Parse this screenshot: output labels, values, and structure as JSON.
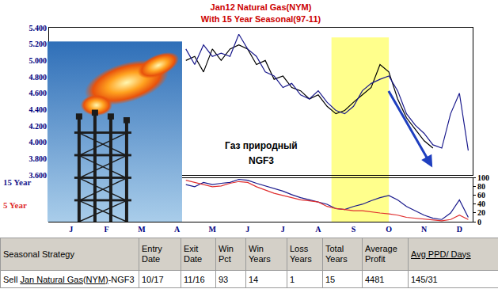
{
  "chart_data": [
    {
      "type": "line",
      "title": "Jan12 Natural Gas(NYM)",
      "subtitle": "With 15 Year Seasonal(97-11)",
      "categories": [
        null,
        null,
        "J",
        null,
        null,
        null,
        "F",
        null,
        null,
        null,
        "M",
        null,
        null,
        null,
        "A",
        null,
        null,
        null,
        "M",
        null,
        null,
        null,
        "J",
        null,
        null,
        null,
        "J",
        null,
        null,
        null,
        "A",
        null,
        null,
        null,
        "S",
        null,
        null,
        null,
        "O",
        null,
        null,
        null,
        "N",
        null,
        null,
        null,
        "D",
        null
      ],
      "series": [
        {
          "color": "#000000",
          "line_style": "solid",
          "values": [
            null,
            null,
            null,
            null,
            null,
            null,
            null,
            null,
            null,
            null,
            null,
            null,
            null,
            null,
            null,
            5.0,
            5.05,
            4.86,
            5.14,
            5.0,
            5.14,
            5.19,
            5.14,
            4.95,
            5.0,
            4.77,
            4.81,
            4.67,
            4.63,
            4.53,
            4.58,
            4.44,
            4.35,
            4.39,
            4.49,
            4.58,
            4.67,
            4.95,
            4.86,
            4.53,
            4.3,
            4.16,
            4.02,
            3.93,
            null,
            null,
            null,
            null
          ]
        },
        {
          "color": "#1a1a8c",
          "line_style": "solid",
          "values": [
            null,
            null,
            null,
            null,
            null,
            null,
            null,
            null,
            null,
            null,
            null,
            null,
            null,
            null,
            null,
            5.14,
            4.95,
            5.19,
            5.05,
            5.09,
            5.05,
            5.32,
            5.14,
            5.05,
            4.86,
            4.81,
            4.67,
            4.72,
            4.58,
            4.53,
            4.63,
            4.49,
            4.39,
            4.35,
            4.44,
            4.63,
            4.72,
            4.77,
            4.81,
            4.63,
            4.35,
            4.21,
            4.11,
            3.97,
            3.93,
            4.35,
            4.6,
            3.9
          ]
        }
      ],
      "ylim": [
        3.6,
        5.4
      ],
      "yticks": [
        {
          "value": 3.6,
          "label": "3.600"
        },
        {
          "value": 3.8,
          "label": "3.800"
        },
        {
          "value": 4.0,
          "label": "4.000"
        },
        {
          "value": 4.2,
          "label": "4.200"
        },
        {
          "value": 4.4,
          "label": "4.400"
        },
        {
          "value": 4.6,
          "label": "4.600"
        },
        {
          "value": 4.8,
          "label": "4.800"
        },
        {
          "value": 5.0,
          "label": "5.000"
        },
        {
          "value": 5.2,
          "label": "5.200"
        },
        {
          "value": 5.4,
          "label": "5.400"
        }
      ],
      "tick_labels": "y",
      "grid": false,
      "shaded_range": [
        "S",
        "O"
      ],
      "annotations": [
        "Газ природный",
        "NGF3"
      ]
    },
    {
      "type": "line",
      "categories": [
        null,
        null,
        "J",
        null,
        null,
        null,
        "F",
        null,
        null,
        null,
        "M",
        null,
        null,
        null,
        "A",
        null,
        null,
        null,
        "M",
        null,
        null,
        null,
        "J",
        null,
        null,
        null,
        "J",
        null,
        null,
        null,
        "A",
        null,
        null,
        null,
        "S",
        null,
        null,
        null,
        "O",
        null,
        null,
        null,
        "N",
        null,
        null,
        null,
        "D",
        null
      ],
      "series": [
        {
          "name": "15 Year",
          "color": "#1a1a8c",
          "line_style": "solid",
          "values": [
            null,
            null,
            null,
            null,
            null,
            null,
            null,
            null,
            null,
            null,
            null,
            null,
            null,
            null,
            null,
            85,
            80,
            90,
            85,
            88,
            90,
            97,
            95,
            88,
            82,
            75,
            70,
            62,
            55,
            50,
            45,
            40,
            30,
            28,
            35,
            40,
            48,
            55,
            60,
            50,
            35,
            25,
            15,
            8,
            5,
            20,
            50,
            10
          ]
        },
        {
          "name": "5 Year",
          "color": "#e03030",
          "line_style": "solid",
          "values": [
            null,
            null,
            null,
            null,
            null,
            null,
            null,
            null,
            null,
            null,
            null,
            null,
            null,
            null,
            null,
            95,
            90,
            85,
            80,
            82,
            88,
            92,
            90,
            80,
            72,
            65,
            60,
            55,
            50,
            48,
            45,
            35,
            30,
            28,
            25,
            25,
            22,
            20,
            18,
            15,
            10,
            8,
            5,
            3,
            2,
            5,
            15,
            5
          ]
        }
      ],
      "ylim": [
        0,
        100
      ],
      "yticks": [
        0,
        20,
        40,
        60,
        80,
        100
      ],
      "grid": false
    }
  ],
  "table": {
    "header": [
      "Seasonal Strategy",
      "Entry Date",
      "Exit Date",
      "Win Pct",
      "Win Years",
      "Loss Years",
      "Total Years",
      "Average Profit",
      [
        {
          "text": "Avg PPD/ Days",
          "underline": true
        }
      ]
    ],
    "rows": [
      [
        [
          {
            "text": "Sell "
          },
          {
            "text": "Jan Natural Gas(NYM)",
            "underline": true
          },
          {
            "text": "-NGF3"
          }
        ],
        "10/17",
        "11/16",
        "93",
        "14",
        "1",
        "15",
        "4481",
        "145/31"
      ]
    ]
  }
}
